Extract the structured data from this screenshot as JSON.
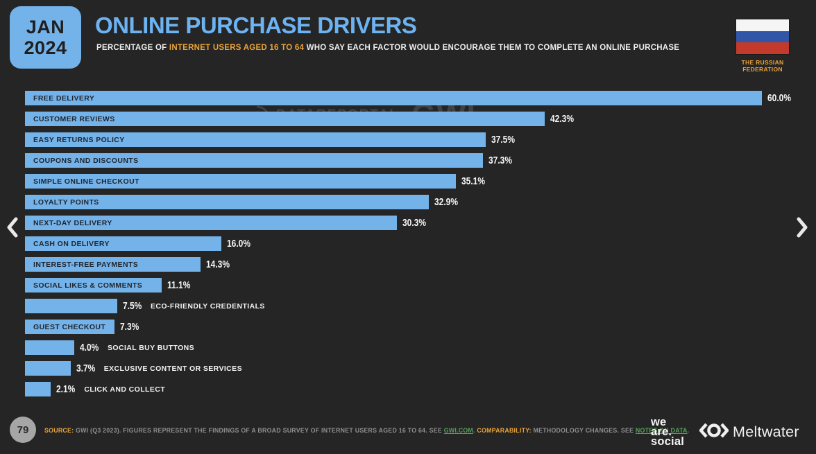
{
  "colors": {
    "background": "#252525",
    "accent_blue": "#74B2EA",
    "title_blue": "#6DB3F1",
    "highlight_orange": "#EBA339",
    "link_green": "#55A158",
    "flag_white": "#F5F5F5",
    "flag_blue": "#3156A8",
    "flag_red": "#C13A2C"
  },
  "header": {
    "date_line1": "JAN",
    "date_line2": "2024",
    "title": "ONLINE PURCHASE DRIVERS",
    "subtitle_prefix": "PERCENTAGE OF ",
    "subtitle_highlight": "INTERNET USERS AGED 16 TO 64",
    "subtitle_suffix": " WHO SAY EACH FACTOR WOULD ENCOURAGE THEM TO COMPLETE AN ONLINE PURCHASE",
    "country_line1": "THE RUSSIAN",
    "country_line2": "FEDERATION"
  },
  "watermark": {
    "brand1": "DATAREPORTAL",
    "brand2": "GWI."
  },
  "chart_data": {
    "type": "bar",
    "orientation": "horizontal",
    "title": "Online Purchase Drivers",
    "unit": "percent",
    "xlim": [
      0,
      60
    ],
    "grid": false,
    "legend": "none",
    "bar_color": "#74B2EA",
    "categories": [
      "FREE DELIVERY",
      "CUSTOMER REVIEWS",
      "EASY RETURNS POLICY",
      "COUPONS AND DISCOUNTS",
      "SIMPLE ONLINE CHECKOUT",
      "LOYALTY POINTS",
      "NEXT-DAY DELIVERY",
      "CASH ON DELIVERY",
      "INTEREST-FREE PAYMENTS",
      "SOCIAL LIKES & COMMENTS",
      "ECO-FRIENDLY CREDENTIALS",
      "GUEST CHECKOUT",
      "SOCIAL BUY BUTTONS",
      "EXCLUSIVE CONTENT OR SERVICES",
      "CLICK AND COLLECT"
    ],
    "values": [
      60.0,
      42.3,
      37.5,
      37.3,
      35.1,
      32.9,
      30.3,
      16.0,
      14.3,
      11.1,
      7.5,
      7.3,
      4.0,
      3.7,
      2.1
    ],
    "display_values": [
      "60.0%",
      "42.3%",
      "37.5%",
      "37.3%",
      "35.1%",
      "32.9%",
      "30.3%",
      "16.0%",
      "14.3%",
      "11.1%",
      "7.5%",
      "7.3%",
      "4.0%",
      "3.7%",
      "2.1%"
    ],
    "label_inside": [
      true,
      true,
      true,
      true,
      true,
      true,
      true,
      true,
      true,
      true,
      false,
      true,
      false,
      false,
      false
    ]
  },
  "footer": {
    "page_number": "79",
    "source_bold1": "SOURCE:",
    "source_text1": " GWI (Q3 2023). FIGURES REPRESENT THE FINDINGS OF A BROAD SURVEY OF INTERNET USERS AGED 16 TO 64. SEE ",
    "source_link1": "GWI.COM",
    "source_text2": ". ",
    "source_bold2": "COMPARABILITY:",
    "source_text3": " METHODOLOGY CHANGES. SEE ",
    "source_link2": "NOTES ON DATA",
    "source_text4": ".",
    "logo_we_are_social": [
      "we",
      "are.",
      "social"
    ],
    "logo_meltwater": "Meltwater"
  }
}
